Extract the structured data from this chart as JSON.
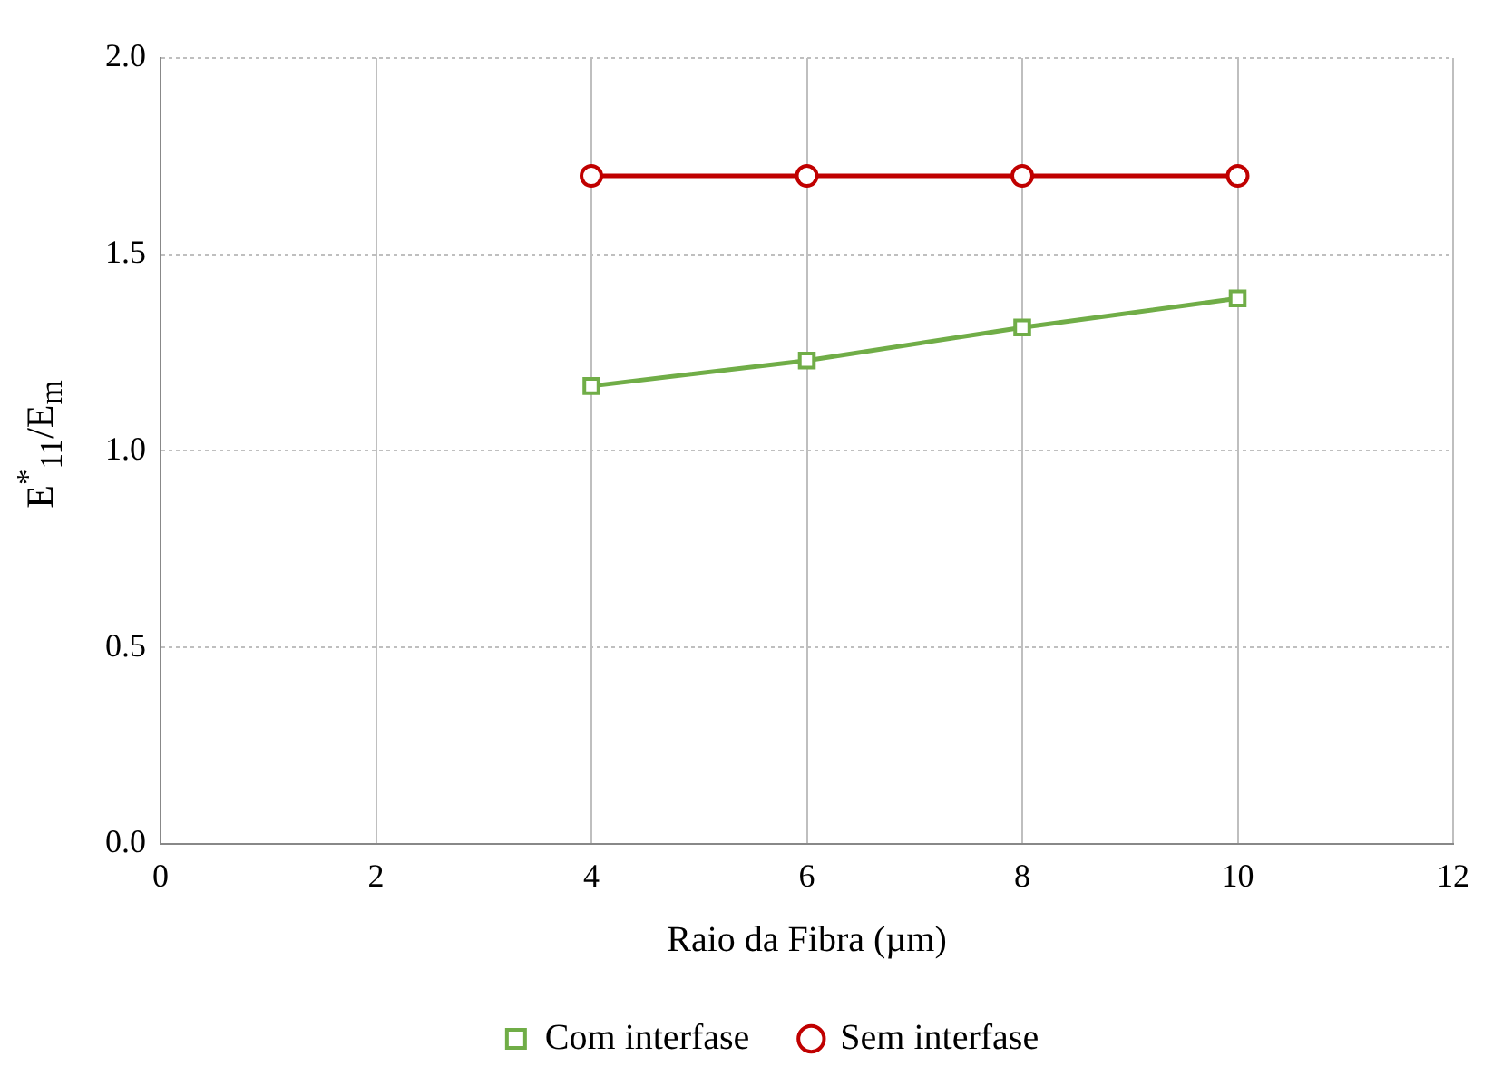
{
  "chart_data": {
    "type": "line",
    "xlabel": "Raio da Fibra (µm)",
    "ylabel": "E$^{*}$$_{11}$/E$_{m}$",
    "x": [
      4,
      6,
      8,
      10
    ],
    "series": [
      {
        "name": "Com interfase",
        "color": "#70ad47",
        "marker": "square",
        "values": [
          1.165,
          1.23,
          1.314,
          1.388
        ]
      },
      {
        "name": "Sem interfase",
        "color": "#c00000",
        "marker": "circle",
        "values": [
          1.7,
          1.7,
          1.7,
          1.7
        ]
      }
    ],
    "xlim": [
      0,
      12
    ],
    "xticks": [
      0,
      2,
      4,
      6,
      8,
      10,
      12
    ],
    "ylim": [
      0,
      2
    ],
    "yticks": [
      {
        "value": 0,
        "label": "0.0"
      },
      {
        "value": 0.5,
        "label": "0.5"
      },
      {
        "value": 1,
        "label": "1.0"
      },
      {
        "value": 1.5,
        "label": "1.5"
      },
      {
        "value": 2,
        "label": "2.0"
      }
    ],
    "grid": true,
    "legend": "bottom",
    "line_style": "solid"
  }
}
